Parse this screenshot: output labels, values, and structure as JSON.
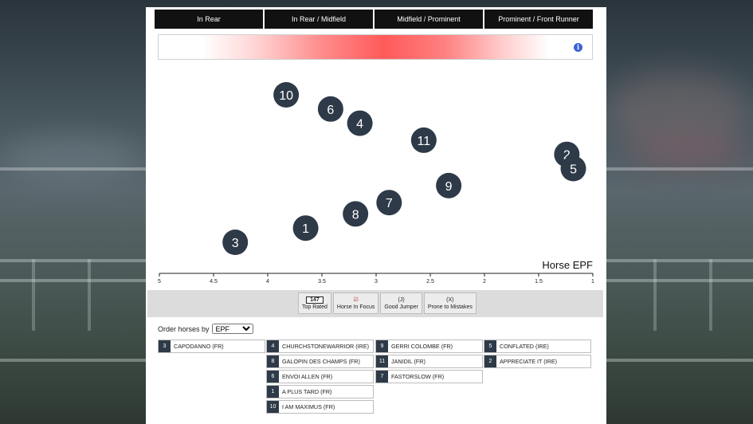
{
  "tabs": [
    "In Rear",
    "In Rear / Midfield",
    "Midfield / Prominent",
    "Prominent / Front Runner"
  ],
  "info_icon": "info-icon",
  "chart_data": {
    "type": "scatter",
    "xlabel": "Horse EPF",
    "xlim": [
      5,
      1
    ],
    "x_ticks": [
      "5",
      "4.5",
      "4",
      "3.5",
      "3",
      "2.5",
      "2",
      "1.5",
      "1"
    ],
    "points": [
      {
        "label": "10",
        "x": 3.83,
        "y": 0.87
      },
      {
        "label": "6",
        "x": 3.42,
        "y": 0.82
      },
      {
        "label": "4",
        "x": 3.15,
        "y": 0.77
      },
      {
        "label": "11",
        "x": 2.56,
        "y": 0.71
      },
      {
        "label": "2",
        "x": 1.24,
        "y": 0.66
      },
      {
        "label": "5",
        "x": 1.18,
        "y": 0.61
      },
      {
        "label": "9",
        "x": 2.33,
        "y": 0.55
      },
      {
        "label": "7",
        "x": 2.88,
        "y": 0.49
      },
      {
        "label": "8",
        "x": 3.19,
        "y": 0.45
      },
      {
        "label": "1",
        "x": 3.65,
        "y": 0.4
      },
      {
        "label": "3",
        "x": 4.3,
        "y": 0.35
      }
    ],
    "point_color": "#2e3a48"
  },
  "legend": {
    "top_rated": {
      "value": "147",
      "label": "Top Rated"
    },
    "horse_in_focus": {
      "symbol": "☑",
      "label": "Horse In Focus"
    },
    "good_jumper": {
      "symbol": "(J)",
      "label": "Good Jumper"
    },
    "prone_to_mistakes": {
      "symbol": "(X)",
      "label": "Prone to Mistakes"
    }
  },
  "order": {
    "label": "Order horses by",
    "selected": "EPF"
  },
  "columns": [
    [
      {
        "num": "3",
        "name": "CAPODANNO (FR)"
      }
    ],
    [
      {
        "num": "4",
        "name": "CHURCHSTONEWARRIOR (IRE)"
      },
      {
        "num": "8",
        "name": "GALOPIN DES CHAMPS (FR)"
      },
      {
        "num": "6",
        "name": "ENVOI ALLEN (FR)"
      },
      {
        "num": "1",
        "name": "A PLUS TARD (FR)"
      },
      {
        "num": "10",
        "name": "I AM MAXIMUS (FR)"
      }
    ],
    [
      {
        "num": "9",
        "name": "GERRI COLOMBE (FR)"
      },
      {
        "num": "11",
        "name": "JANIDIL (FR)"
      },
      {
        "num": "7",
        "name": "FASTORSLOW (FR)"
      }
    ],
    [
      {
        "num": "5",
        "name": "CONFLATED (IRE)"
      },
      {
        "num": "2",
        "name": "APPRECIATE IT (IRE)"
      }
    ]
  ]
}
